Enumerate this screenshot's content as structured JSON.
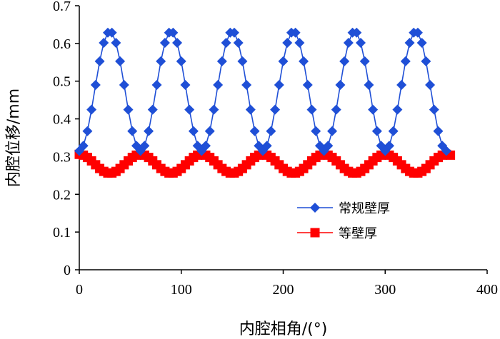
{
  "chart_data": {
    "type": "line",
    "title": "",
    "xlabel": "内腔相角/(°)",
    "ylabel": "内腔位移/mm",
    "xlim": [
      0,
      400
    ],
    "ylim": [
      0,
      0.7
    ],
    "xticks": [
      "0",
      "100",
      "200",
      "300",
      "400"
    ],
    "xtick_values": [
      0,
      100,
      200,
      300,
      400
    ],
    "yticks": [
      "0",
      "0.1",
      "0.2",
      "0.3",
      "0.4",
      "0.5",
      "0.6",
      "0.7"
    ],
    "ytick_values": [
      0,
      0.1,
      0.2,
      0.3,
      0.4,
      0.5,
      0.6,
      0.7
    ],
    "grid": false,
    "legend_position": "right",
    "series": [
      {
        "name": "常规壁厚",
        "color": "#1f4fd6",
        "marker": "diamond",
        "period": 60,
        "min": 0.315,
        "max": 0.632,
        "phase": 30,
        "x_start": 0,
        "x_end": 360,
        "step": 4
      },
      {
        "name": "等壁厚",
        "color": "#ff0000",
        "marker": "square",
        "period": 60,
        "min": 0.256,
        "max": 0.306,
        "phase": 0,
        "x_start": 0,
        "x_end": 365,
        "step": 4
      }
    ]
  }
}
